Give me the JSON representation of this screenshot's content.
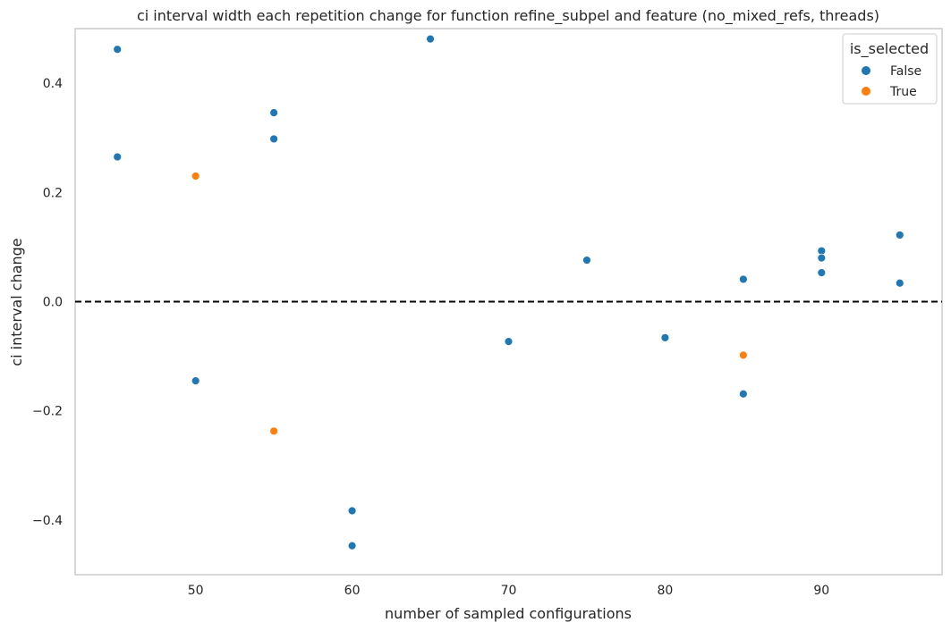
{
  "chart_data": {
    "type": "scatter",
    "title": "ci interval width each repetition change for function refine_subpel and feature (no_mixed_refs, threads)",
    "xlabel": "number of sampled configurations",
    "ylabel": "ci interval change",
    "xlim": [
      42.3,
      97.7
    ],
    "ylim": [
      -0.5,
      0.5
    ],
    "xticks": [
      50,
      60,
      70,
      80,
      90
    ],
    "xtick_labels": [
      "50",
      "60",
      "70",
      "80",
      "90"
    ],
    "yticks": [
      -0.4,
      -0.2,
      0.0,
      0.2,
      0.4
    ],
    "ytick_labels": [
      "−0.4",
      "−0.2",
      "0.0",
      "0.2",
      "0.4"
    ],
    "grid": false,
    "reference_line": {
      "y": 0.0,
      "style": "dashed",
      "color": "#000000"
    },
    "legend": {
      "title": "is_selected",
      "placement": "top-right",
      "entries": [
        {
          "label": "False",
          "color": "#1f77b4"
        },
        {
          "label": "True",
          "color": "#ff7f0e"
        }
      ]
    },
    "series": [
      {
        "name": "False",
        "color": "#1f77b4",
        "points": [
          {
            "x": 45,
            "y": 0.462
          },
          {
            "x": 45,
            "y": 0.265
          },
          {
            "x": 50,
            "y": -0.145
          },
          {
            "x": 55,
            "y": 0.346
          },
          {
            "x": 55,
            "y": 0.298
          },
          {
            "x": 60,
            "y": -0.383
          },
          {
            "x": 60,
            "y": -0.447
          },
          {
            "x": 65,
            "y": 0.481
          },
          {
            "x": 70,
            "y": -0.073
          },
          {
            "x": 75,
            "y": 0.076
          },
          {
            "x": 80,
            "y": -0.066
          },
          {
            "x": 85,
            "y": 0.041
          },
          {
            "x": 85,
            "y": -0.169
          },
          {
            "x": 90,
            "y": 0.093
          },
          {
            "x": 90,
            "y": 0.08
          },
          {
            "x": 90,
            "y": 0.053
          },
          {
            "x": 95,
            "y": 0.122
          },
          {
            "x": 95,
            "y": 0.034
          }
        ]
      },
      {
        "name": "True",
        "color": "#ff7f0e",
        "points": [
          {
            "x": 50,
            "y": 0.23
          },
          {
            "x": 55,
            "y": -0.237
          },
          {
            "x": 85,
            "y": -0.098
          }
        ]
      }
    ]
  }
}
